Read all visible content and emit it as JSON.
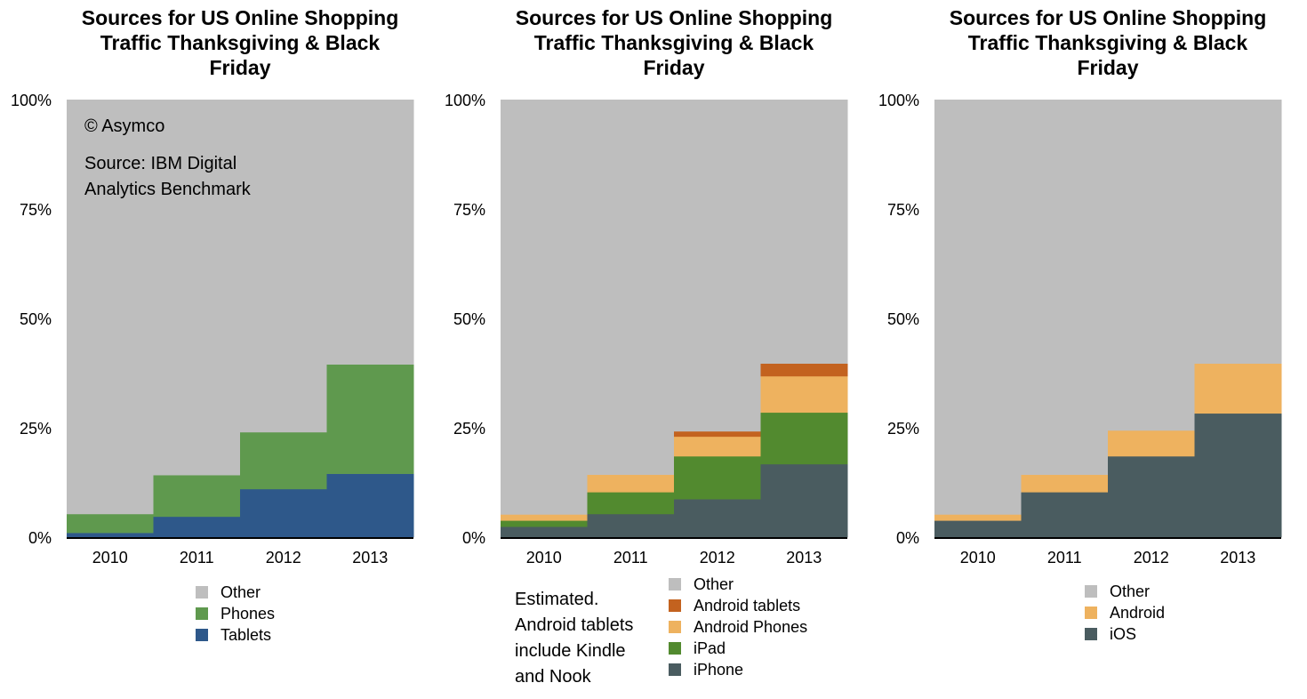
{
  "chart_data": [
    {
      "type": "area",
      "title": "Sources for US Online Shopping Traffic Thanksgiving & Black Friday",
      "categories": [
        "2010",
        "2011",
        "2012",
        "2013"
      ],
      "yticks": [
        "0%",
        "25%",
        "50%",
        "75%",
        "100%"
      ],
      "ylim": [
        0,
        100
      ],
      "series": [
        {
          "name": "Tablets",
          "color": "#2e588a",
          "values": [
            1.0,
            4.7,
            11.0,
            14.5
          ]
        },
        {
          "name": "Phones",
          "color": "#5f994e",
          "values": [
            4.3,
            9.5,
            13.0,
            25.0
          ]
        },
        {
          "name": "Other",
          "color": "#bebebe",
          "values": [
            94.7,
            85.8,
            76.0,
            60.5
          ]
        }
      ],
      "annotations": [
        "© Asymco",
        "Source: IBM Digital",
        "Analytics Benchmark"
      ]
    },
    {
      "type": "area",
      "title": "Sources for US Online Shopping Traffic Thanksgiving & Black Friday",
      "categories": [
        "2010",
        "2011",
        "2012",
        "2013"
      ],
      "yticks": [
        "0%",
        "25%",
        "50%",
        "75%",
        "100%"
      ],
      "ylim": [
        0,
        100
      ],
      "series": [
        {
          "name": "iPhone",
          "color": "#4a5c60",
          "values": [
            2.4,
            5.3,
            8.7,
            16.7
          ]
        },
        {
          "name": "iPad",
          "color": "#528a2f",
          "values": [
            1.4,
            5.0,
            9.8,
            11.8
          ]
        },
        {
          "name": "Android Phones",
          "color": "#eeb25f",
          "values": [
            1.4,
            4.0,
            4.5,
            8.3
          ]
        },
        {
          "name": "Android tablets",
          "color": "#c3621f",
          "values": [
            0,
            0,
            1.2,
            2.9
          ]
        },
        {
          "name": "Other",
          "color": "#bebebe",
          "values": [
            94.8,
            85.7,
            75.8,
            60.3
          ]
        }
      ],
      "note": [
        "Estimated.",
        "Android tablets",
        "include Kindle",
        "and Nook"
      ]
    },
    {
      "type": "area",
      "title": "Sources for US Online Shopping Traffic Thanksgiving & Black Friday",
      "categories": [
        "2010",
        "2011",
        "2012",
        "2013"
      ],
      "yticks": [
        "0%",
        "25%",
        "50%",
        "75%",
        "100%"
      ],
      "ylim": [
        0,
        100
      ],
      "series": [
        {
          "name": "iOS",
          "color": "#4a5c60",
          "values": [
            3.8,
            10.3,
            18.5,
            28.3
          ]
        },
        {
          "name": "Android",
          "color": "#eeb25f",
          "values": [
            1.4,
            4.0,
            5.9,
            11.4
          ]
        },
        {
          "name": "Other",
          "color": "#bebebe",
          "values": [
            94.8,
            85.7,
            75.6,
            60.3
          ]
        }
      ]
    }
  ]
}
